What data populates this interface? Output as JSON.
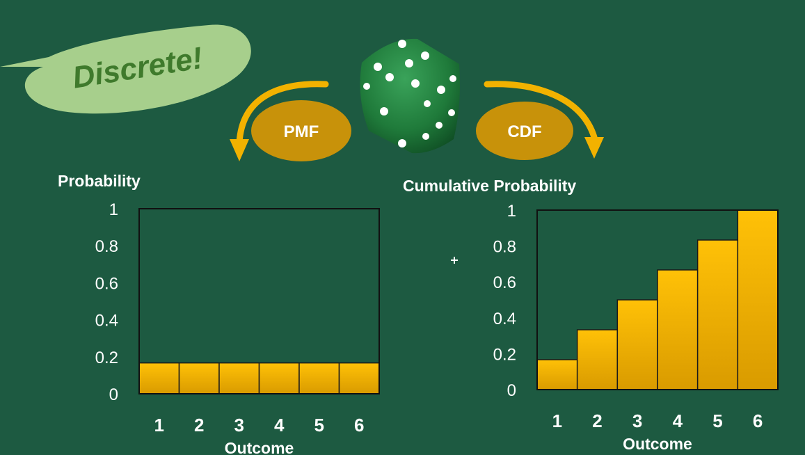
{
  "callout": {
    "text": "Discrete!"
  },
  "labels": {
    "pmf": "PMF",
    "cdf": "CDF"
  },
  "colors": {
    "background": "#1d5a41",
    "bubble": "#a7cf8c",
    "bubble_text": "#3f7a2c",
    "arrow": "#f2b200",
    "badge": "#c8920a",
    "bar_top": "#ffc107",
    "bar_bottom": "#d99b00",
    "text": "#ffffff",
    "die": "#1f7a3a"
  },
  "chart_data": [
    {
      "type": "bar",
      "ylabel": "Probability",
      "xlabel": "Outcome",
      "categories": [
        "1",
        "2",
        "3",
        "4",
        "5",
        "6"
      ],
      "values": [
        0.1667,
        0.1667,
        0.1667,
        0.1667,
        0.1667,
        0.1667
      ],
      "ylim": [
        0,
        1
      ],
      "yticks": [
        "0",
        "0.2",
        "0.4",
        "0.6",
        "0.8",
        "1"
      ],
      "grid": false
    },
    {
      "type": "bar",
      "ylabel": "Cumulative Probability",
      "xlabel": "Outcome",
      "categories": [
        "1",
        "2",
        "3",
        "4",
        "5",
        "6"
      ],
      "values": [
        0.1667,
        0.3333,
        0.5,
        0.6667,
        0.8333,
        1.0
      ],
      "ylim": [
        0,
        1
      ],
      "yticks": [
        "0",
        "0.2",
        "0.4",
        "0.6",
        "0.8",
        "1"
      ],
      "grid": false
    }
  ]
}
